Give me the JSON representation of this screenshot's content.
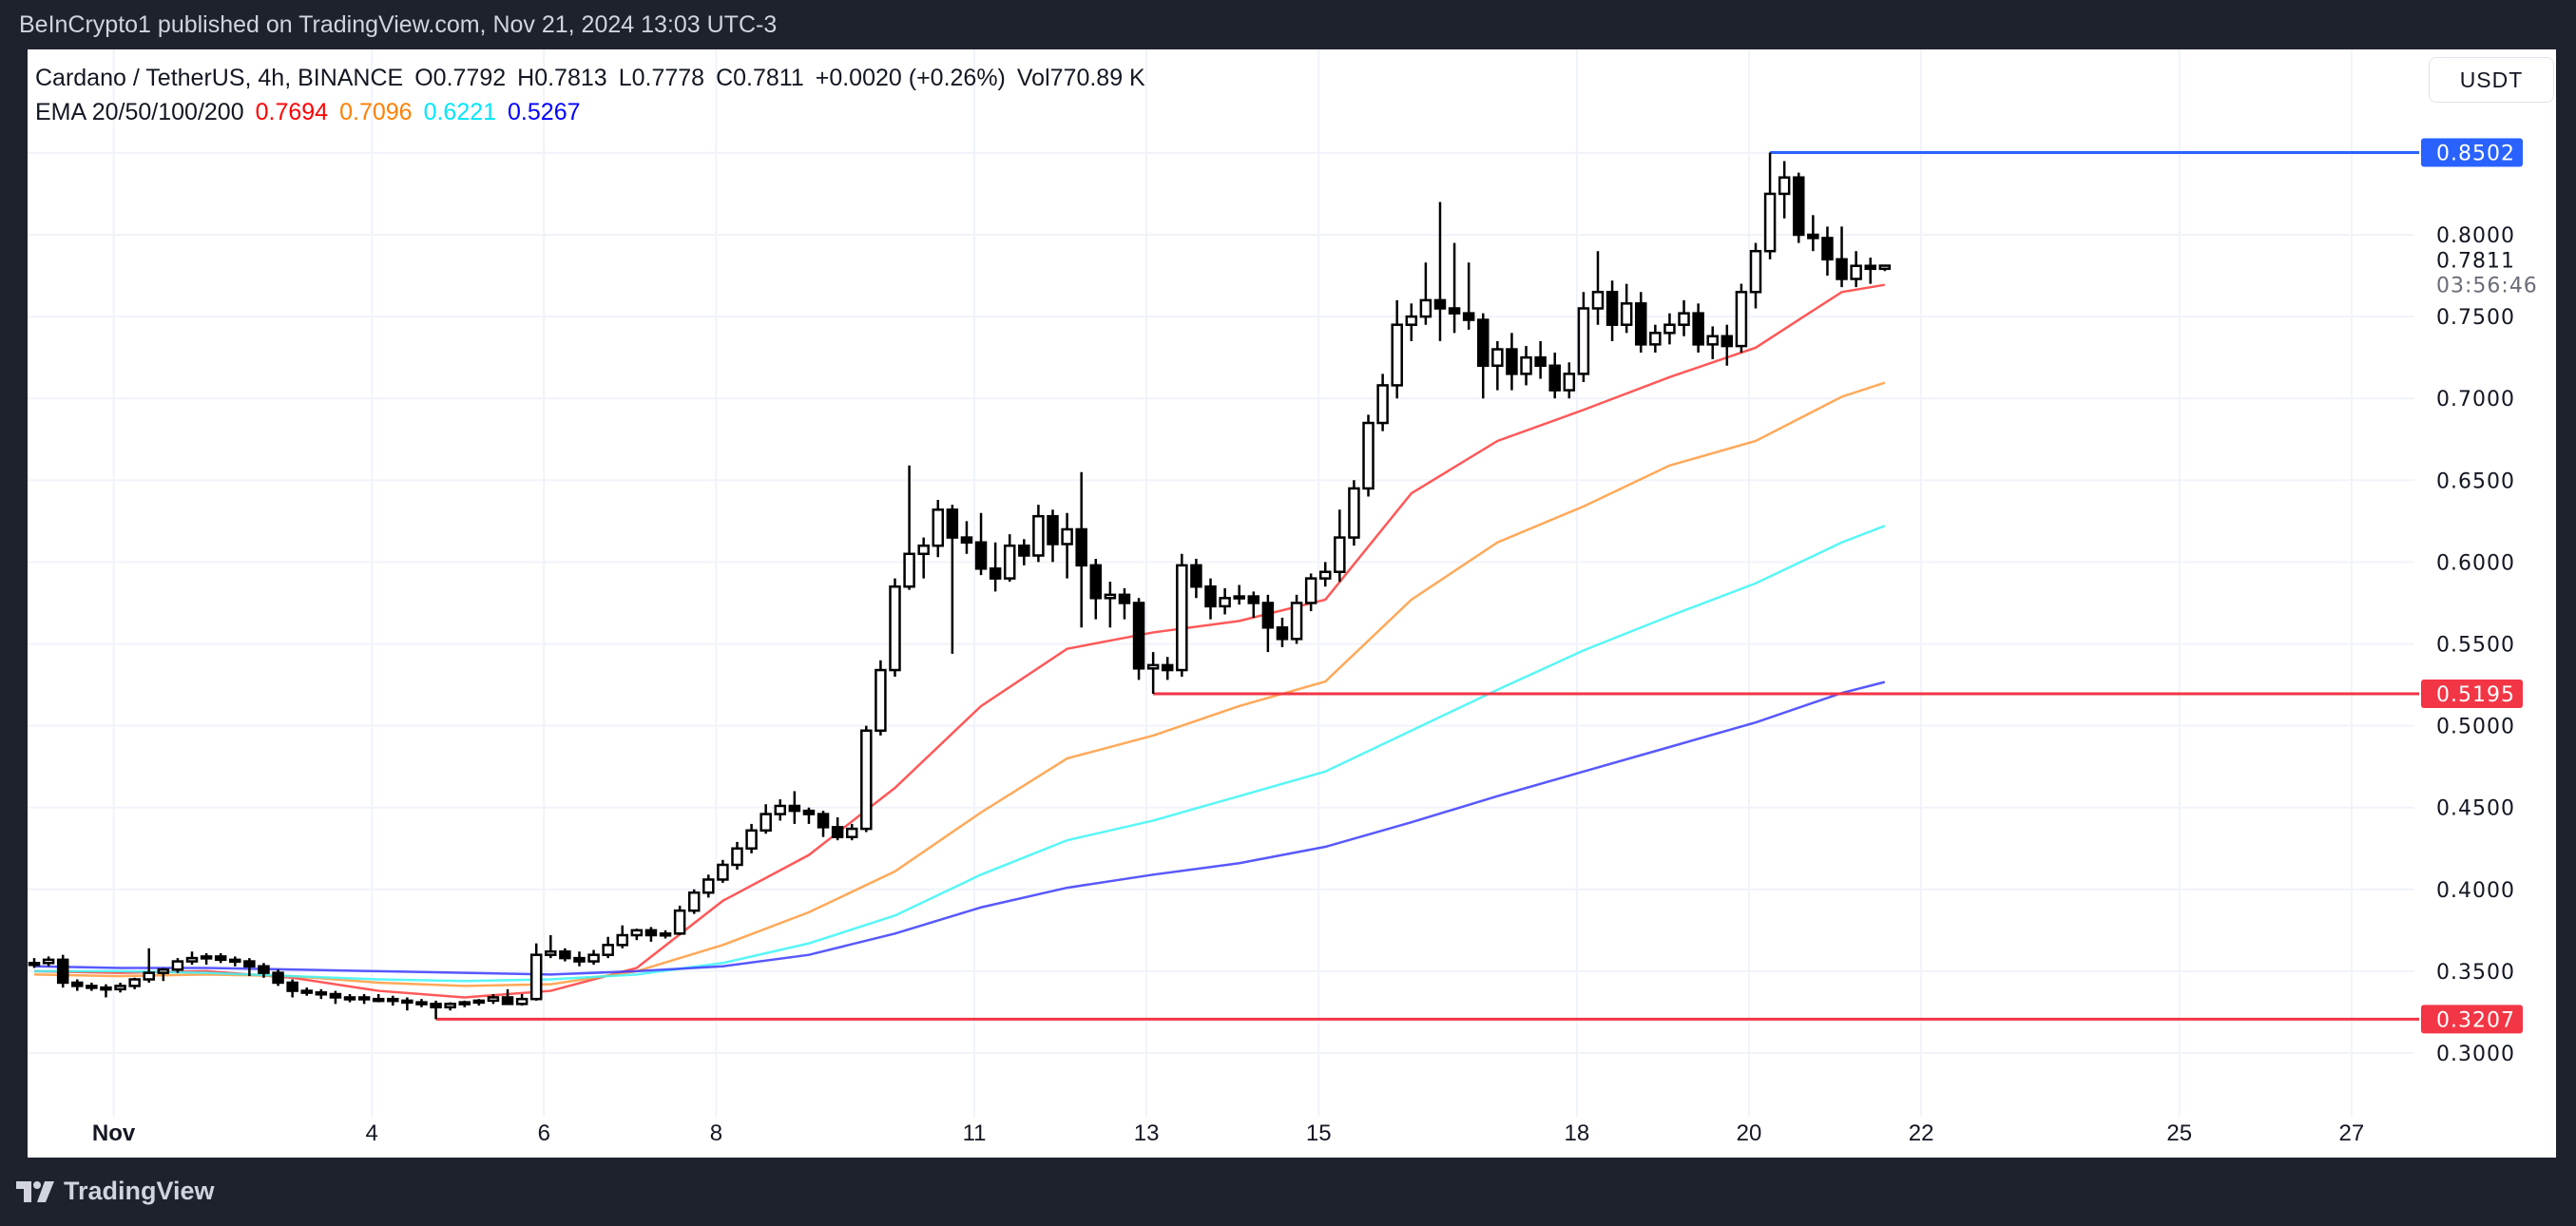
{
  "header": {
    "published": "BeInCrypto1 published on TradingView.com, Nov 21, 2024 13:03 UTC-3"
  },
  "legend": {
    "symbol": "Cardano / TetherUS, 4h, BINANCE",
    "open": "O0.7792",
    "high": "H0.7813",
    "low": "L0.7778",
    "close": "C0.7811",
    "change": "+0.0020 (+0.26%)",
    "volume": "Vol770.89 K",
    "ema_label": "EMA 20/50/100/200",
    "ema_values": [
      "0.7694",
      "0.7096",
      "0.6221",
      "0.5267"
    ]
  },
  "currency_button": "USDT",
  "footer": {
    "brand": "TradingView"
  },
  "colors": {
    "ema20": "#ff3b3b",
    "ema50": "#ff9a3c",
    "ema100": "#3cf5f5",
    "ema200": "#3b3bff",
    "support": "#f23645",
    "resistance": "#2962ff",
    "grid": "#f0f3fa"
  },
  "chart_data": {
    "type": "candlestick",
    "title": "Cardano / TetherUS, 4h, BINANCE",
    "first_candle": "Oct 31 00:00",
    "interval": "4h",
    "grid": true,
    "ylim": [
      0.27,
      0.88
    ],
    "y_ticks": [
      "0.8000",
      "0.7500",
      "0.7000",
      "0.6500",
      "0.6000",
      "0.5500",
      "0.5000",
      "0.4500",
      "0.4000",
      "0.3500",
      "0.3000"
    ],
    "x_ticks": [
      {
        "label": "Nov",
        "day": 1,
        "bold": true
      },
      {
        "label": "4",
        "day": 4
      },
      {
        "label": "6",
        "day": 6
      },
      {
        "label": "8",
        "day": 8
      },
      {
        "label": "11",
        "day": 11
      },
      {
        "label": "13",
        "day": 13
      },
      {
        "label": "15",
        "day": 15
      },
      {
        "label": "18",
        "day": 18
      },
      {
        "label": "20",
        "day": 20
      },
      {
        "label": "22",
        "day": 22
      },
      {
        "label": "25",
        "day": 25
      },
      {
        "label": "27",
        "day": 27
      }
    ],
    "last_price": {
      "value": "0.7811",
      "countdown": "03:56:46"
    },
    "levels": [
      {
        "value": "0.8502",
        "from": "Nov 20 04:00",
        "color": "resistance"
      },
      {
        "value": "0.5195",
        "from": "Nov 13 00:00",
        "color": "support"
      },
      {
        "value": "0.3207",
        "from": "Nov 4 16:00",
        "color": "support"
      }
    ],
    "ohlc": [
      [
        0.354,
        0.358,
        0.352,
        0.355
      ],
      [
        0.355,
        0.359,
        0.353,
        0.357
      ],
      [
        0.357,
        0.36,
        0.34,
        0.343
      ],
      [
        0.343,
        0.345,
        0.338,
        0.341
      ],
      [
        0.341,
        0.343,
        0.338,
        0.34
      ],
      [
        0.34,
        0.342,
        0.334,
        0.339
      ],
      [
        0.339,
        0.343,
        0.337,
        0.341
      ],
      [
        0.341,
        0.346,
        0.339,
        0.345
      ],
      [
        0.345,
        0.364,
        0.343,
        0.349
      ],
      [
        0.349,
        0.352,
        0.344,
        0.351
      ],
      [
        0.351,
        0.358,
        0.349,
        0.356
      ],
      [
        0.356,
        0.362,
        0.354,
        0.358
      ],
      [
        0.358,
        0.361,
        0.354,
        0.359
      ],
      [
        0.359,
        0.361,
        0.355,
        0.357
      ],
      [
        0.357,
        0.359,
        0.353,
        0.356
      ],
      [
        0.356,
        0.358,
        0.347,
        0.353
      ],
      [
        0.353,
        0.355,
        0.346,
        0.349
      ],
      [
        0.349,
        0.351,
        0.341,
        0.343
      ],
      [
        0.343,
        0.345,
        0.334,
        0.338
      ],
      [
        0.338,
        0.34,
        0.335,
        0.337
      ],
      [
        0.337,
        0.339,
        0.333,
        0.336
      ],
      [
        0.336,
        0.338,
        0.33,
        0.334
      ],
      [
        0.334,
        0.336,
        0.331,
        0.334
      ],
      [
        0.334,
        0.336,
        0.33,
        0.333
      ],
      [
        0.333,
        0.336,
        0.331,
        0.333
      ],
      [
        0.333,
        0.335,
        0.329,
        0.332
      ],
      [
        0.332,
        0.334,
        0.326,
        0.331
      ],
      [
        0.331,
        0.333,
        0.328,
        0.33
      ],
      [
        0.33,
        0.332,
        0.3207,
        0.328
      ],
      [
        0.328,
        0.331,
        0.326,
        0.33
      ],
      [
        0.33,
        0.332,
        0.328,
        0.331
      ],
      [
        0.331,
        0.333,
        0.329,
        0.332
      ],
      [
        0.332,
        0.336,
        0.33,
        0.334
      ],
      [
        0.334,
        0.339,
        0.331,
        0.33
      ],
      [
        0.33,
        0.336,
        0.329,
        0.333
      ],
      [
        0.333,
        0.367,
        0.332,
        0.36
      ],
      [
        0.36,
        0.372,
        0.358,
        0.362
      ],
      [
        0.362,
        0.364,
        0.356,
        0.358
      ],
      [
        0.358,
        0.362,
        0.353,
        0.356
      ],
      [
        0.356,
        0.363,
        0.354,
        0.36
      ],
      [
        0.36,
        0.371,
        0.358,
        0.366
      ],
      [
        0.366,
        0.378,
        0.364,
        0.372
      ],
      [
        0.372,
        0.376,
        0.369,
        0.375
      ],
      [
        0.375,
        0.377,
        0.368,
        0.372
      ],
      [
        0.372,
        0.375,
        0.37,
        0.373
      ],
      [
        0.373,
        0.39,
        0.372,
        0.387
      ],
      [
        0.387,
        0.4,
        0.385,
        0.398
      ],
      [
        0.398,
        0.409,
        0.395,
        0.406
      ],
      [
        0.406,
        0.418,
        0.404,
        0.415
      ],
      [
        0.415,
        0.429,
        0.412,
        0.425
      ],
      [
        0.425,
        0.44,
        0.422,
        0.436
      ],
      [
        0.436,
        0.452,
        0.434,
        0.446
      ],
      [
        0.446,
        0.455,
        0.442,
        0.451
      ],
      [
        0.451,
        0.46,
        0.44,
        0.448
      ],
      [
        0.448,
        0.45,
        0.44,
        0.446
      ],
      [
        0.446,
        0.448,
        0.432,
        0.438
      ],
      [
        0.438,
        0.444,
        0.43,
        0.432
      ],
      [
        0.432,
        0.44,
        0.43,
        0.437
      ],
      [
        0.437,
        0.5,
        0.435,
        0.497
      ],
      [
        0.497,
        0.54,
        0.494,
        0.534
      ],
      [
        0.534,
        0.59,
        0.53,
        0.585
      ],
      [
        0.585,
        0.659,
        0.583,
        0.605
      ],
      [
        0.605,
        0.615,
        0.59,
        0.61
      ],
      [
        0.61,
        0.638,
        0.603,
        0.632
      ],
      [
        0.632,
        0.635,
        0.544,
        0.615
      ],
      [
        0.615,
        0.625,
        0.605,
        0.612
      ],
      [
        0.612,
        0.63,
        0.592,
        0.596
      ],
      [
        0.596,
        0.612,
        0.582,
        0.59
      ],
      [
        0.59,
        0.617,
        0.588,
        0.61
      ],
      [
        0.61,
        0.614,
        0.598,
        0.604
      ],
      [
        0.604,
        0.635,
        0.6,
        0.628
      ],
      [
        0.628,
        0.632,
        0.6,
        0.611
      ],
      [
        0.611,
        0.63,
        0.59,
        0.62
      ],
      [
        0.62,
        0.655,
        0.56,
        0.598
      ],
      [
        0.598,
        0.602,
        0.565,
        0.578
      ],
      [
        0.578,
        0.588,
        0.56,
        0.58
      ],
      [
        0.58,
        0.584,
        0.565,
        0.575
      ],
      [
        0.575,
        0.578,
        0.528,
        0.535
      ],
      [
        0.535,
        0.545,
        0.5195,
        0.537
      ],
      [
        0.537,
        0.542,
        0.528,
        0.534
      ],
      [
        0.534,
        0.605,
        0.53,
        0.598
      ],
      [
        0.598,
        0.602,
        0.578,
        0.585
      ],
      [
        0.585,
        0.59,
        0.565,
        0.573
      ],
      [
        0.573,
        0.584,
        0.568,
        0.578
      ],
      [
        0.578,
        0.586,
        0.574,
        0.579
      ],
      [
        0.579,
        0.582,
        0.566,
        0.575
      ],
      [
        0.575,
        0.58,
        0.545,
        0.56
      ],
      [
        0.56,
        0.566,
        0.548,
        0.553
      ],
      [
        0.553,
        0.58,
        0.55,
        0.575
      ],
      [
        0.575,
        0.593,
        0.57,
        0.59
      ],
      [
        0.59,
        0.6,
        0.585,
        0.594
      ],
      [
        0.594,
        0.632,
        0.588,
        0.615
      ],
      [
        0.615,
        0.65,
        0.61,
        0.645
      ],
      [
        0.645,
        0.69,
        0.64,
        0.685
      ],
      [
        0.685,
        0.715,
        0.68,
        0.708
      ],
      [
        0.708,
        0.76,
        0.7,
        0.745
      ],
      [
        0.745,
        0.758,
        0.735,
        0.75
      ],
      [
        0.75,
        0.783,
        0.745,
        0.76
      ],
      [
        0.76,
        0.82,
        0.735,
        0.755
      ],
      [
        0.755,
        0.795,
        0.74,
        0.752
      ],
      [
        0.752,
        0.783,
        0.742,
        0.748
      ],
      [
        0.748,
        0.752,
        0.7,
        0.72
      ],
      [
        0.72,
        0.735,
        0.705,
        0.73
      ],
      [
        0.73,
        0.74,
        0.705,
        0.715
      ],
      [
        0.715,
        0.732,
        0.708,
        0.725
      ],
      [
        0.725,
        0.735,
        0.712,
        0.72
      ],
      [
        0.72,
        0.728,
        0.7,
        0.705
      ],
      [
        0.705,
        0.722,
        0.7,
        0.715
      ],
      [
        0.715,
        0.765,
        0.71,
        0.755
      ],
      [
        0.755,
        0.79,
        0.745,
        0.765
      ],
      [
        0.765,
        0.772,
        0.735,
        0.745
      ],
      [
        0.745,
        0.77,
        0.74,
        0.758
      ],
      [
        0.758,
        0.765,
        0.728,
        0.733
      ],
      [
        0.733,
        0.745,
        0.728,
        0.74
      ],
      [
        0.74,
        0.752,
        0.733,
        0.745
      ],
      [
        0.745,
        0.76,
        0.738,
        0.752
      ],
      [
        0.752,
        0.758,
        0.728,
        0.733
      ],
      [
        0.733,
        0.744,
        0.724,
        0.738
      ],
      [
        0.738,
        0.745,
        0.72,
        0.732
      ],
      [
        0.732,
        0.77,
        0.728,
        0.765
      ],
      [
        0.765,
        0.795,
        0.755,
        0.79
      ],
      [
        0.79,
        0.8502,
        0.785,
        0.825
      ],
      [
        0.825,
        0.845,
        0.81,
        0.835
      ],
      [
        0.835,
        0.838,
        0.795,
        0.8
      ],
      [
        0.8,
        0.812,
        0.79,
        0.798
      ],
      [
        0.798,
        0.805,
        0.775,
        0.785
      ],
      [
        0.785,
        0.805,
        0.768,
        0.773
      ],
      [
        0.773,
        0.79,
        0.768,
        0.781
      ],
      [
        0.781,
        0.786,
        0.77,
        0.7792
      ],
      [
        0.7792,
        0.7813,
        0.7778,
        0.7811
      ]
    ],
    "ema_days": [
      "Oct 31",
      "Nov 1",
      "Nov 2",
      "Nov 3",
      "Nov 4",
      "Nov 5",
      "Nov 6",
      "Nov 7",
      "Nov 8",
      "Nov 9",
      "Nov 10",
      "Nov 11",
      "Nov 12",
      "Nov 13",
      "Nov 14",
      "Nov 15",
      "Nov 16",
      "Nov 17",
      "Nov 18",
      "Nov 19",
      "Nov 20",
      "Nov 21",
      "Nov 21 12:00"
    ],
    "series": [
      {
        "name": "EMA 20",
        "color": "ema20",
        "values": [
          0.35,
          0.349,
          0.35,
          0.346,
          0.338,
          0.334,
          0.338,
          0.352,
          0.393,
          0.421,
          0.462,
          0.512,
          0.547,
          0.557,
          0.564,
          0.577,
          0.642,
          0.674,
          0.693,
          0.713,
          0.731,
          0.765,
          0.7694
        ]
      },
      {
        "name": "EMA 50",
        "color": "ema50",
        "values": [
          0.348,
          0.347,
          0.348,
          0.347,
          0.343,
          0.341,
          0.342,
          0.35,
          0.366,
          0.386,
          0.411,
          0.447,
          0.48,
          0.494,
          0.512,
          0.527,
          0.577,
          0.612,
          0.634,
          0.659,
          0.674,
          0.701,
          0.7096
        ]
      },
      {
        "name": "EMA 100",
        "color": "ema100",
        "values": [
          0.35,
          0.35,
          0.349,
          0.347,
          0.345,
          0.344,
          0.345,
          0.348,
          0.355,
          0.367,
          0.384,
          0.409,
          0.43,
          0.442,
          0.457,
          0.472,
          0.497,
          0.522,
          0.546,
          0.567,
          0.587,
          0.612,
          0.6221
        ]
      },
      {
        "name": "EMA 200",
        "color": "ema200",
        "values": [
          0.353,
          0.352,
          0.352,
          0.351,
          0.35,
          0.349,
          0.348,
          0.35,
          0.353,
          0.36,
          0.373,
          0.389,
          0.401,
          0.409,
          0.416,
          0.426,
          0.441,
          0.457,
          0.472,
          0.487,
          0.502,
          0.52,
          0.5267
        ]
      }
    ]
  }
}
